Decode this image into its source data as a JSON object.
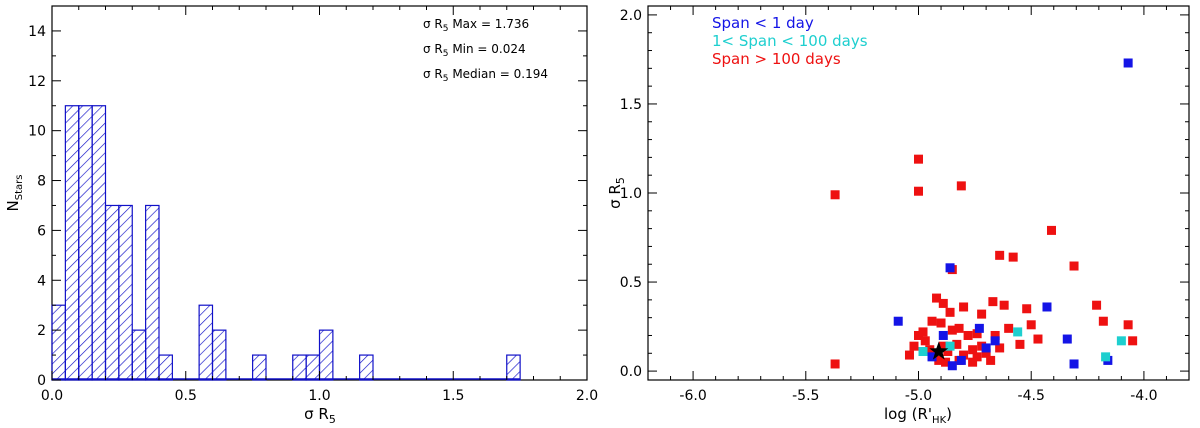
{
  "chart_data": [
    {
      "type": "bar",
      "subtype": "histogram",
      "bin_width": 0.05,
      "xlim": [
        0.0,
        2.0
      ],
      "ylim": [
        0,
        15
      ],
      "xticks": [
        "0.0",
        "0.5",
        "1.0",
        "1.5",
        "2.0"
      ],
      "yticks": [
        "0",
        "2",
        "4",
        "6",
        "8",
        "10",
        "12",
        "14"
      ],
      "xlabel": "σ R5",
      "ylabel": "NStars",
      "bar_color": "#1010c8",
      "bins": [
        {
          "x0": 0.0,
          "count": 3
        },
        {
          "x0": 0.05,
          "count": 11
        },
        {
          "x0": 0.1,
          "count": 11
        },
        {
          "x0": 0.15,
          "count": 11
        },
        {
          "x0": 0.2,
          "count": 7
        },
        {
          "x0": 0.25,
          "count": 7
        },
        {
          "x0": 0.3,
          "count": 2
        },
        {
          "x0": 0.35,
          "count": 7
        },
        {
          "x0": 0.4,
          "count": 1
        },
        {
          "x0": 0.55,
          "count": 3
        },
        {
          "x0": 0.6,
          "count": 2
        },
        {
          "x0": 0.75,
          "count": 1
        },
        {
          "x0": 0.9,
          "count": 1
        },
        {
          "x0": 0.95,
          "count": 1
        },
        {
          "x0": 1.0,
          "count": 2
        },
        {
          "x0": 1.15,
          "count": 1
        },
        {
          "x0": 1.7,
          "count": 1
        }
      ],
      "annotations": [
        {
          "text": "σ R5 Max = 1.736"
        },
        {
          "text": "σ R5 Min = 0.024"
        },
        {
          "text": "σ R5 Median = 0.194"
        }
      ]
    },
    {
      "type": "scatter",
      "xlim": [
        -6.2,
        -3.8
      ],
      "ylim": [
        -0.05,
        2.05
      ],
      "xticks": [
        "-6.0",
        "-5.5",
        "-5.0",
        "-4.5",
        "-4.0"
      ],
      "yticks": [
        "0.0",
        "0.5",
        "1.0",
        "1.5",
        "2.0"
      ],
      "xlabel": "log (R'HK)",
      "ylabel": "σ R5",
      "legend_position": "top-left",
      "legend": [
        {
          "label": "Span < 1 day",
          "color": "#1414e6"
        },
        {
          "label": "1< Span < 100 days",
          "color": "#1ecfcf"
        },
        {
          "label": "Span > 100 days",
          "color": "#ee1111"
        }
      ],
      "series": [
        {
          "name": "Span < 1 day",
          "color": "#1414e6",
          "points": [
            [
              -4.07,
              1.73
            ],
            [
              -4.86,
              0.58
            ],
            [
              -5.09,
              0.28
            ],
            [
              -4.43,
              0.36
            ],
            [
              -4.73,
              0.24
            ],
            [
              -4.66,
              0.17
            ],
            [
              -4.34,
              0.18
            ],
            [
              -4.31,
              0.04
            ],
            [
              -4.16,
              0.06
            ],
            [
              -4.85,
              0.03
            ],
            [
              -4.94,
              0.08
            ],
            [
              -4.81,
              0.06
            ],
            [
              -4.7,
              0.13
            ],
            [
              -4.89,
              0.2
            ]
          ]
        },
        {
          "name": "1< Span < 100 days",
          "color": "#1ecfcf",
          "points": [
            [
              -4.98,
              0.11
            ],
            [
              -4.56,
              0.22
            ],
            [
              -4.17,
              0.08
            ],
            [
              -4.1,
              0.17
            ],
            [
              -4.86,
              0.14
            ]
          ]
        },
        {
          "name": "Span > 100 days",
          "color": "#ee1111",
          "points": [
            [
              -5.37,
              0.99
            ],
            [
              -5.37,
              0.04
            ],
            [
              -5.0,
              1.19
            ],
            [
              -5.0,
              1.01
            ],
            [
              -4.81,
              1.04
            ],
            [
              -4.85,
              0.57
            ],
            [
              -4.64,
              0.65
            ],
            [
              -4.58,
              0.64
            ],
            [
              -4.41,
              0.79
            ],
            [
              -4.31,
              0.59
            ],
            [
              -4.92,
              0.41
            ],
            [
              -4.89,
              0.38
            ],
            [
              -4.86,
              0.33
            ],
            [
              -4.8,
              0.36
            ],
            [
              -4.72,
              0.32
            ],
            [
              -4.67,
              0.39
            ],
            [
              -4.62,
              0.37
            ],
            [
              -4.52,
              0.35
            ],
            [
              -4.21,
              0.37
            ],
            [
              -4.18,
              0.28
            ],
            [
              -4.07,
              0.26
            ],
            [
              -4.05,
              0.17
            ],
            [
              -5.04,
              0.09
            ],
            [
              -5.02,
              0.14
            ],
            [
              -5.0,
              0.2
            ],
            [
              -4.98,
              0.22
            ],
            [
              -4.97,
              0.17
            ],
            [
              -4.95,
              0.12
            ],
            [
              -4.93,
              0.09
            ],
            [
              -4.91,
              0.06
            ],
            [
              -4.89,
              0.14
            ],
            [
              -4.87,
              0.11
            ],
            [
              -4.85,
              0.23
            ],
            [
              -4.83,
              0.15
            ],
            [
              -4.82,
              0.06
            ],
            [
              -4.8,
              0.09
            ],
            [
              -4.78,
              0.2
            ],
            [
              -4.76,
              0.12
            ],
            [
              -4.74,
              0.08
            ],
            [
              -4.72,
              0.14
            ],
            [
              -4.7,
              0.1
            ],
            [
              -4.68,
              0.06
            ],
            [
              -4.66,
              0.2
            ],
            [
              -4.64,
              0.13
            ],
            [
              -4.6,
              0.24
            ],
            [
              -4.55,
              0.15
            ],
            [
              -4.5,
              0.26
            ],
            [
              -4.47,
              0.18
            ],
            [
              -4.9,
              0.27
            ],
            [
              -4.94,
              0.28
            ],
            [
              -4.88,
              0.05
            ],
            [
              -4.82,
              0.24
            ],
            [
              -4.76,
              0.05
            ],
            [
              -4.74,
              0.21
            ]
          ]
        }
      ],
      "highlight": {
        "label": "star",
        "color": "#000000",
        "point": [
          -4.91,
          0.11
        ]
      }
    }
  ]
}
